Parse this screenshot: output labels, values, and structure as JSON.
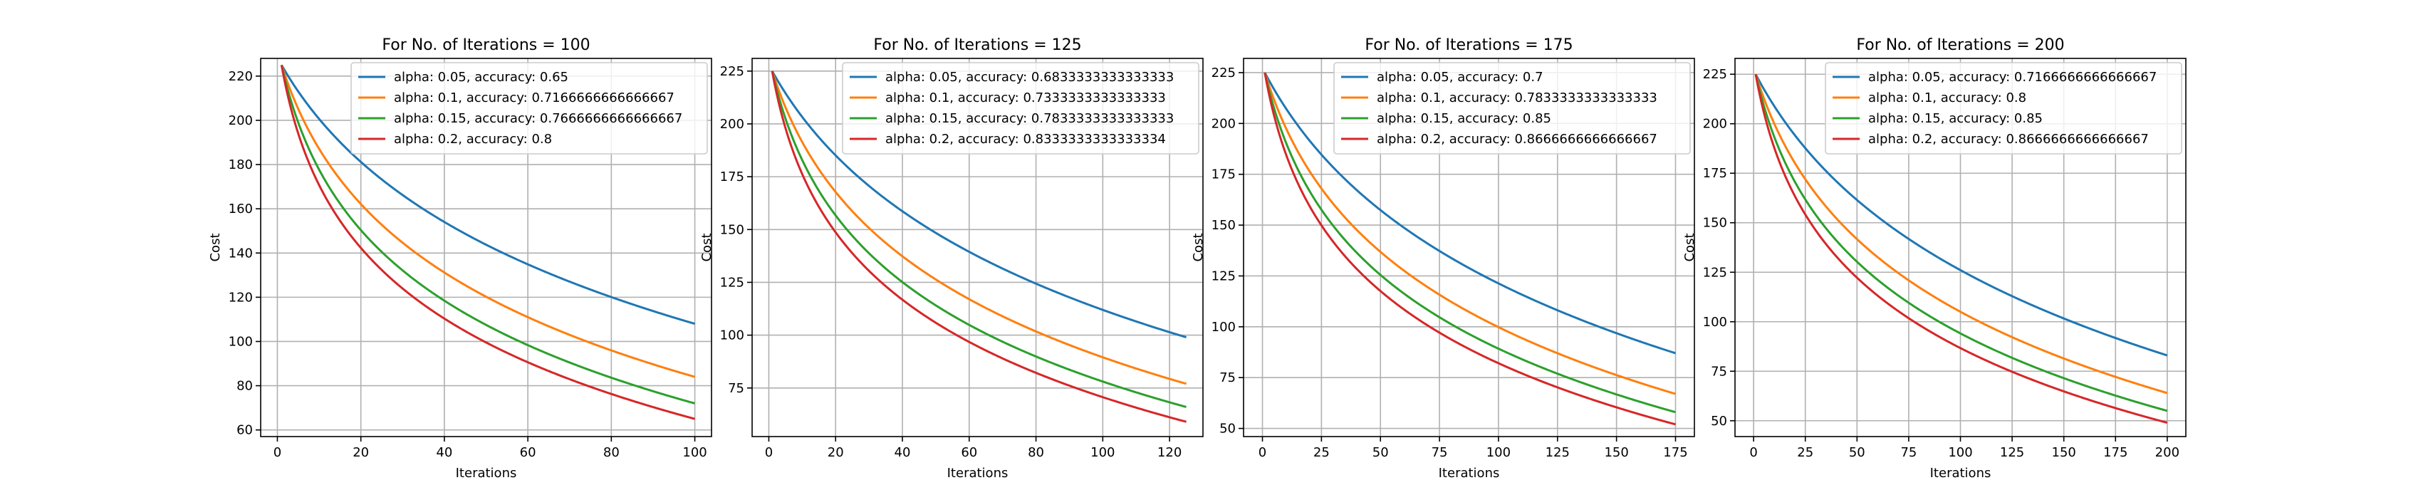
{
  "chart_data": [
    {
      "type": "line",
      "title": "For No. of Iterations = 100",
      "xlabel": "Iterations",
      "ylabel": "Cost",
      "xlim": [
        -4,
        104
      ],
      "ylim": [
        57,
        228
      ],
      "xticks": [
        0,
        20,
        40,
        60,
        80,
        100
      ],
      "yticks": [
        60,
        80,
        100,
        120,
        140,
        160,
        180,
        200,
        220
      ],
      "grid": true,
      "legend_position": "upper right",
      "iterations": 100,
      "y0": 225,
      "series": [
        {
          "name": "alpha: 0.05, accuracy: 0.65",
          "color": "#1f77b4",
          "end": 108
        },
        {
          "name": "alpha: 0.1, accuracy: 0.7166666666666667",
          "color": "#ff7f0e",
          "end": 84
        },
        {
          "name": "alpha: 0.15, accuracy: 0.7666666666666667",
          "color": "#2ca02c",
          "end": 72
        },
        {
          "name": "alpha: 0.2, accuracy: 0.8",
          "color": "#d62728",
          "end": 65
        }
      ]
    },
    {
      "type": "line",
      "title": "For No. of Iterations = 125",
      "xlabel": "Iterations",
      "ylabel": "Cost",
      "xlim": [
        -5,
        130
      ],
      "ylim": [
        52,
        231
      ],
      "xticks": [
        0,
        20,
        40,
        60,
        80,
        100,
        120
      ],
      "yticks": [
        75,
        100,
        125,
        150,
        175,
        200,
        225
      ],
      "grid": true,
      "legend_position": "upper right",
      "iterations": 125,
      "y0": 225,
      "series": [
        {
          "name": "alpha: 0.05, accuracy: 0.6833333333333333",
          "color": "#1f77b4",
          "end": 99
        },
        {
          "name": "alpha: 0.1, accuracy: 0.7333333333333333",
          "color": "#ff7f0e",
          "end": 77
        },
        {
          "name": "alpha: 0.15, accuracy: 0.7833333333333333",
          "color": "#2ca02c",
          "end": 66
        },
        {
          "name": "alpha: 0.2, accuracy: 0.8333333333333334",
          "color": "#d62728",
          "end": 59
        }
      ]
    },
    {
      "type": "line",
      "title": "For No. of Iterations = 175",
      "xlabel": "Iterations",
      "ylabel": "Cost",
      "xlim": [
        -8,
        183
      ],
      "ylim": [
        46,
        232
      ],
      "xticks": [
        0,
        25,
        50,
        75,
        100,
        125,
        150,
        175
      ],
      "yticks": [
        50,
        75,
        100,
        125,
        150,
        175,
        200,
        225
      ],
      "grid": true,
      "legend_position": "upper right",
      "iterations": 175,
      "y0": 225,
      "series": [
        {
          "name": "alpha: 0.05, accuracy: 0.7",
          "color": "#1f77b4",
          "end": 87
        },
        {
          "name": "alpha: 0.1, accuracy: 0.7833333333333333",
          "color": "#ff7f0e",
          "end": 67
        },
        {
          "name": "alpha: 0.15, accuracy: 0.85",
          "color": "#2ca02c",
          "end": 58
        },
        {
          "name": "alpha: 0.2, accuracy: 0.8666666666666667",
          "color": "#d62728",
          "end": 52
        }
      ]
    },
    {
      "type": "line",
      "title": "For No. of Iterations = 200",
      "xlabel": "Iterations",
      "ylabel": "Cost",
      "xlim": [
        -9,
        209
      ],
      "ylim": [
        42,
        233
      ],
      "xticks": [
        0,
        25,
        50,
        75,
        100,
        125,
        150,
        175,
        200
      ],
      "yticks": [
        50,
        75,
        100,
        125,
        150,
        175,
        200,
        225
      ],
      "grid": true,
      "legend_position": "upper right",
      "iterations": 200,
      "y0": 225,
      "series": [
        {
          "name": "alpha: 0.05, accuracy: 0.7166666666666667",
          "color": "#1f77b4",
          "end": 83
        },
        {
          "name": "alpha: 0.1, accuracy: 0.8",
          "color": "#ff7f0e",
          "end": 64
        },
        {
          "name": "alpha: 0.15, accuracy: 0.85",
          "color": "#2ca02c",
          "end": 55
        },
        {
          "name": "alpha: 0.2, accuracy: 0.8666666666666667",
          "color": "#d62728",
          "end": 49
        }
      ]
    }
  ]
}
